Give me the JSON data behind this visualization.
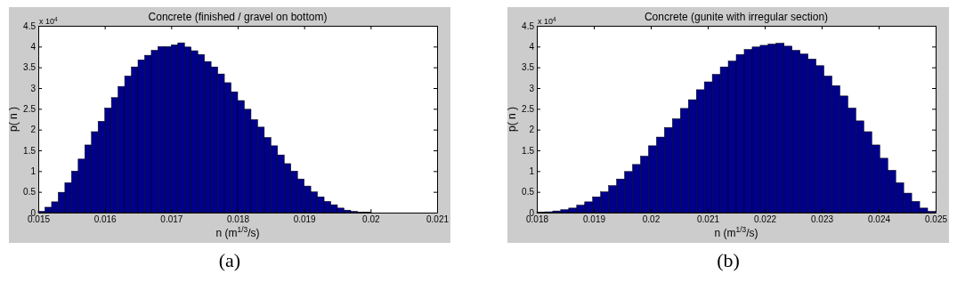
{
  "chart_data": [
    {
      "type": "histogram",
      "title": "Concrete (finished / gravel on bottom)",
      "xlabel": "n (m$^{1/3}$/s)",
      "ylabel": "p( n )",
      "color": "#00008b",
      "bins": [
        0.015,
        0.0151,
        0.0152,
        0.0153,
        0.0154,
        0.0155,
        0.0156,
        0.0157,
        0.0158,
        0.0159,
        0.016,
        0.0161,
        0.0162,
        0.0163,
        0.0164,
        0.0165,
        0.0166,
        0.0167,
        0.0168,
        0.0169,
        0.017,
        0.0171,
        0.0172,
        0.0173,
        0.0174,
        0.0175,
        0.0176,
        0.0177,
        0.0178,
        0.0179,
        0.018,
        0.0181,
        0.0182,
        0.0183,
        0.0184,
        0.0185,
        0.0186,
        0.0187,
        0.0188,
        0.0189,
        0.019,
        0.0191,
        0.0192,
        0.0193,
        0.0194,
        0.0195,
        0.0196,
        0.0197,
        0.0198,
        0.0199,
        0.02
      ],
      "values": [
        0.03,
        0.13,
        0.26,
        0.49,
        0.72,
        1.0,
        1.29,
        1.63,
        1.95,
        2.2,
        2.52,
        2.77,
        3.04,
        3.29,
        3.51,
        3.68,
        3.79,
        3.91,
        4.0,
        4.0,
        4.04,
        4.09,
        3.99,
        3.9,
        3.81,
        3.64,
        3.51,
        3.34,
        3.13,
        2.91,
        2.7,
        2.49,
        2.24,
        2.06,
        1.81,
        1.61,
        1.39,
        1.18,
        1.0,
        0.81,
        0.64,
        0.5,
        0.38,
        0.27,
        0.19,
        0.11,
        0.06,
        0.03,
        0.01,
        0.01
      ],
      "xlim": [
        0.015,
        0.021
      ],
      "xticks": [
        0.015,
        0.016,
        0.017,
        0.018,
        0.019,
        0.02,
        0.021
      ],
      "ylim": [
        0,
        4.5
      ],
      "yticks": [
        0,
        0.5,
        1,
        1.5,
        2,
        2.5,
        3,
        3.5,
        4,
        4.5
      ],
      "annotations": [
        "x 10$^{4}$",
        "(a)"
      ]
    },
    {
      "type": "histogram",
      "title": "Concrete (gunite with irregular section)",
      "xlabel": "n (m$^{1/3}$/s)",
      "ylabel": "p( n )",
      "color": "#00008b",
      "bins": [
        0.018,
        0.01814,
        0.01828,
        0.01842,
        0.01856,
        0.0187,
        0.01884,
        0.01898,
        0.01912,
        0.01926,
        0.0194,
        0.01954,
        0.01968,
        0.01982,
        0.01996,
        0.0201,
        0.02024,
        0.02038,
        0.02052,
        0.02066,
        0.0208,
        0.02094,
        0.02108,
        0.02122,
        0.02136,
        0.0215,
        0.02164,
        0.02178,
        0.02192,
        0.02206,
        0.0222,
        0.02234,
        0.02248,
        0.02262,
        0.02276,
        0.0229,
        0.02304,
        0.02318,
        0.02332,
        0.02346,
        0.0236,
        0.02374,
        0.02388,
        0.02402,
        0.02416,
        0.0243,
        0.02444,
        0.02458,
        0.02472,
        0.02486,
        0.025
      ],
      "values": [
        0.01,
        0.02,
        0.04,
        0.07,
        0.11,
        0.18,
        0.26,
        0.38,
        0.5,
        0.65,
        0.81,
        0.99,
        1.16,
        1.36,
        1.61,
        1.82,
        2.05,
        2.26,
        2.51,
        2.72,
        2.96,
        3.15,
        3.33,
        3.51,
        3.65,
        3.81,
        3.93,
        3.99,
        4.03,
        4.06,
        4.08,
        4.01,
        3.91,
        3.82,
        3.7,
        3.54,
        3.29,
        3.06,
        2.81,
        2.52,
        2.21,
        1.95,
        1.63,
        1.31,
        1.02,
        0.72,
        0.47,
        0.27,
        0.11,
        0.03
      ],
      "xlim": [
        0.018,
        0.025
      ],
      "xticks": [
        0.018,
        0.019,
        0.02,
        0.021,
        0.022,
        0.023,
        0.024,
        0.025
      ],
      "ylim": [
        0,
        4.5
      ],
      "yticks": [
        0,
        0.5,
        1,
        1.5,
        2,
        2.5,
        3,
        3.5,
        4,
        4.5
      ],
      "annotations": [
        "x 10$^{4}$",
        "(b)"
      ]
    }
  ]
}
